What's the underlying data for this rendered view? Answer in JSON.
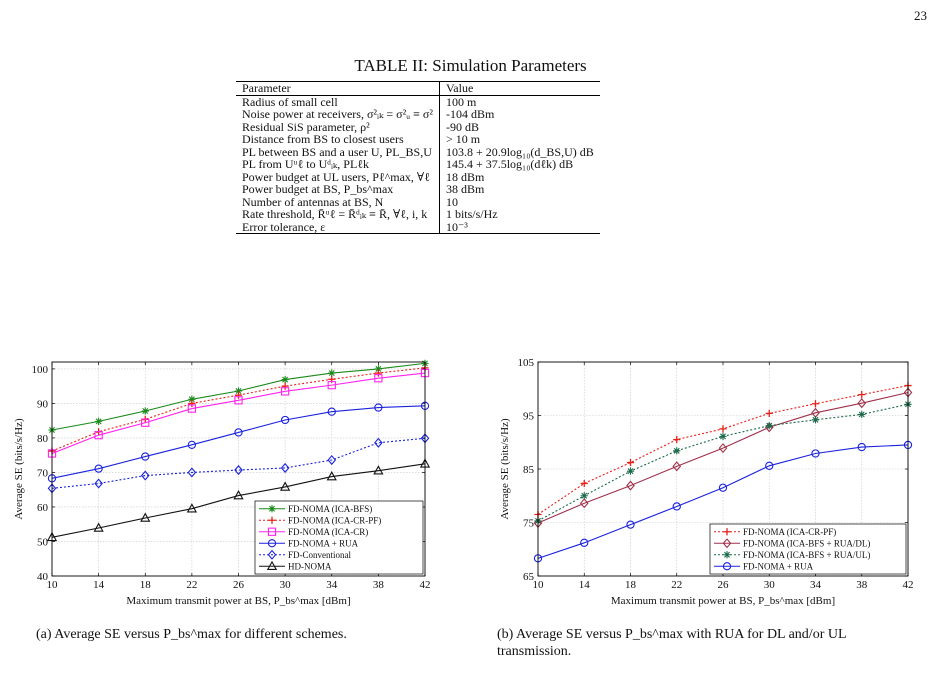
{
  "page_number": "23",
  "table": {
    "caption": "TABLE II: Simulation Parameters",
    "headers": [
      "Parameter",
      "Value"
    ],
    "rows": [
      [
        "Radius of small cell",
        "100 m"
      ],
      [
        "Noise power at receivers, σ²ᵢₖ = σ²ᵤ ≡ σ²",
        "-104 dBm"
      ],
      [
        "Residual SiS parameter, ρ²",
        "-90 dB"
      ],
      [
        "Distance from BS to closest users",
        "> 10 m"
      ],
      [
        "PL between BS and a user U, PL_BS,U",
        "103.8 + 20.9log₁₀(d_BS,U) dB"
      ],
      [
        "PL from Uᵘℓ to Uᵈᵢₖ, PLℓk",
        "145.4 + 37.5log₁₀(dℓk) dB"
      ],
      [
        "Power budget at UL users, Pℓ^max, ∀ℓ",
        "18 dBm"
      ],
      [
        "Power budget at BS, P_bs^max",
        "38 dBm"
      ],
      [
        "Number of antennas at BS, N",
        "10"
      ],
      [
        "Rate threshold, R̄ᵘℓ = R̄ᵈᵢₖ ≡ R̄, ∀ℓ, i, k",
        "1 bits/s/Hz"
      ],
      [
        "Error tolerance, ε",
        "10⁻³"
      ]
    ]
  },
  "chart_data": [
    {
      "type": "line",
      "caption": "(a) Average SE versus P_bs^max for different schemes.",
      "xlabel": "Maximum transmit power at BS, P_bs^max [dBm]",
      "ylabel": "Average SE (bits/s/Hz)",
      "x": [
        10,
        14,
        18,
        22,
        26,
        30,
        34,
        38,
        42
      ],
      "xlim": [
        10,
        42
      ],
      "ylim": [
        40,
        102
      ],
      "yticks": [
        40,
        50,
        60,
        70,
        80,
        90,
        100
      ],
      "grid": true,
      "legend_position": "bottom-right",
      "series": [
        {
          "name": "FD-NOMA (ICA-BFS)",
          "color": "#1a8a1a",
          "marker": "asterisk",
          "dash": "solid",
          "values": [
            82.3,
            84.8,
            87.8,
            91.2,
            93.6,
            96.9,
            98.8,
            100.0,
            101.6
          ]
        },
        {
          "name": "FD-NOMA (ICA-CR-PF)",
          "color": "#e8201a",
          "marker": "plus",
          "dash": "dotted",
          "values": [
            76.2,
            81.8,
            85.4,
            90.0,
            92.4,
            95.0,
            97.0,
            98.8,
            100.3
          ]
        },
        {
          "name": "FD-NOMA (ICA-CR)",
          "color": "#ff22ee",
          "marker": "square",
          "dash": "solid",
          "values": [
            75.5,
            80.8,
            84.4,
            88.5,
            90.9,
            93.5,
            95.3,
            97.3,
            98.8
          ]
        },
        {
          "name": "FD-NOMA + RUA",
          "color": "#1a22dd",
          "marker": "circle",
          "dash": "solid",
          "values": [
            68.3,
            71.1,
            74.6,
            78.0,
            81.6,
            85.2,
            87.6,
            88.8,
            89.3
          ]
        },
        {
          "name": "FD-Conventional",
          "color": "#1a22dd",
          "marker": "diamond",
          "dash": "dotted",
          "values": [
            65.4,
            66.8,
            69.1,
            70.0,
            70.7,
            71.3,
            73.6,
            78.6,
            79.9
          ]
        },
        {
          "name": "HD-NOMA",
          "color": "#111111",
          "marker": "triangle",
          "dash": "solid",
          "values": [
            51.2,
            53.9,
            56.8,
            59.5,
            63.3,
            65.8,
            68.8,
            70.5,
            72.5
          ]
        }
      ]
    },
    {
      "type": "line",
      "caption": "(b) Average SE versus P_bs^max with RUA for DL and/or UL transmission.",
      "xlabel": "Maximum transmit power at BS, P_bs^max [dBm]",
      "ylabel": "Average SE (bits/s/Hz)",
      "x": [
        10,
        14,
        18,
        22,
        26,
        30,
        34,
        38,
        42
      ],
      "xlim": [
        10,
        42
      ],
      "ylim": [
        65,
        105
      ],
      "yticks": [
        65,
        75,
        85,
        95,
        105
      ],
      "grid": true,
      "legend_position": "bottom-right",
      "series": [
        {
          "name": "FD-NOMA (ICA-CR-PF)",
          "color": "#e8201a",
          "marker": "plus",
          "dash": "dotted",
          "values": [
            76.5,
            82.3,
            86.2,
            90.5,
            92.5,
            95.4,
            97.2,
            98.9,
            100.6
          ]
        },
        {
          "name": "FD-NOMA (ICA-BFS + RUA/DL)",
          "color": "#a0304a",
          "marker": "diamond",
          "dash": "solid",
          "values": [
            74.9,
            78.6,
            81.9,
            85.5,
            88.9,
            92.8,
            95.5,
            97.3,
            99.3
          ]
        },
        {
          "name": "FD-NOMA (ICA-BFS + RUA/UL)",
          "color": "#1a6a4a",
          "marker": "star",
          "dash": "dotted",
          "values": [
            75.3,
            80.0,
            84.6,
            88.4,
            91.1,
            93.1,
            94.2,
            95.2,
            97.1
          ]
        },
        {
          "name": "FD-NOMA + RUA",
          "color": "#1a22dd",
          "marker": "circle",
          "dash": "solid",
          "values": [
            68.3,
            71.2,
            74.6,
            78.0,
            81.5,
            85.6,
            87.9,
            89.1,
            89.5
          ]
        }
      ]
    }
  ]
}
